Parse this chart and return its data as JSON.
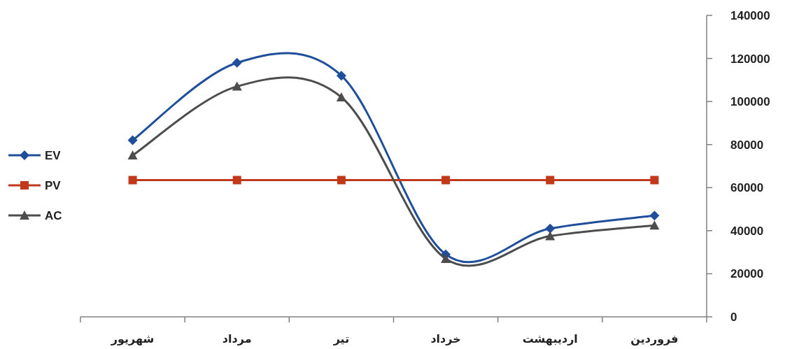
{
  "chart_data": {
    "type": "line",
    "categories": [
      "شهریور",
      "مرداد",
      "تیر",
      "خرداد",
      "اردیبهشت",
      "فروردین"
    ],
    "series": [
      {
        "name": "EV",
        "color": "#1f4e9a",
        "marker": "diamond",
        "values": [
          82000,
          118000,
          112000,
          29000,
          41000,
          47000
        ]
      },
      {
        "name": "PV",
        "color": "#c0391b",
        "marker": "square",
        "values": [
          63500,
          63500,
          63500,
          63500,
          63500,
          63500
        ]
      },
      {
        "name": "AC",
        "color": "#4d4d4d",
        "marker": "triangle",
        "values": [
          75000,
          107000,
          102000,
          27000,
          37500,
          42500
        ]
      }
    ],
    "ylim": [
      0,
      140000
    ],
    "yticks": [
      0,
      20000,
      40000,
      60000,
      80000,
      100000,
      120000,
      140000
    ],
    "legend": "left",
    "line_style": "solid"
  }
}
